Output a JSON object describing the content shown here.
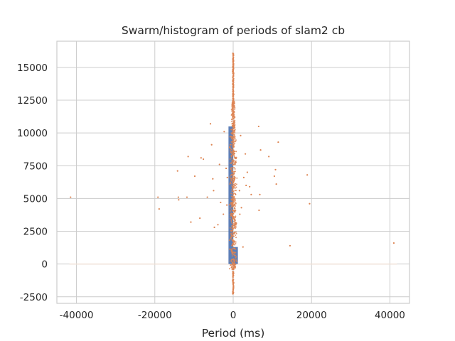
{
  "chart_data": {
    "type": "scatter",
    "title": "Swarm/histogram of periods of slam2 cb",
    "xlabel": "Period (ms)",
    "ylabel": "",
    "xlim": [
      -45000,
      45000
    ],
    "ylim": [
      -3000,
      17000
    ],
    "xticks": [
      -40000,
      -20000,
      0,
      20000,
      40000
    ],
    "yticks": [
      -2500,
      0,
      2500,
      5000,
      7500,
      10000,
      12500,
      15000
    ],
    "grid": true,
    "colors": {
      "histogram": "#4c72b0",
      "points": "#dd8452",
      "grid": "#cccccc",
      "axes": "#cccccc"
    },
    "histogram": {
      "bins": [
        {
          "x0": -1200,
          "x1": 0,
          "count": 10500
        },
        {
          "x0": 0,
          "x1": 1200,
          "count": 1300
        }
      ]
    },
    "outliers": [
      {
        "x": -41500,
        "y": 5100
      },
      {
        "x": -19200,
        "y": 5100
      },
      {
        "x": -18900,
        "y": 4200
      },
      {
        "x": -14200,
        "y": 7100
      },
      {
        "x": -14000,
        "y": 5100
      },
      {
        "x": -13900,
        "y": 4900
      },
      {
        "x": -11500,
        "y": 8200
      },
      {
        "x": -11800,
        "y": 5100
      },
      {
        "x": -10800,
        "y": 3200
      },
      {
        "x": -9800,
        "y": 6700
      },
      {
        "x": -8500,
        "y": 3500
      },
      {
        "x": -8200,
        "y": 8100
      },
      {
        "x": -7600,
        "y": 8000
      },
      {
        "x": -6600,
        "y": 5100
      },
      {
        "x": -5800,
        "y": 10700
      },
      {
        "x": -5500,
        "y": 9100
      },
      {
        "x": -5200,
        "y": 6500
      },
      {
        "x": -5000,
        "y": 5600
      },
      {
        "x": -4800,
        "y": 2800
      },
      {
        "x": -3900,
        "y": 3000
      },
      {
        "x": -3500,
        "y": 7600
      },
      {
        "x": -3200,
        "y": 4700
      },
      {
        "x": -2500,
        "y": 3800
      },
      {
        "x": -2300,
        "y": 10100
      },
      {
        "x": 3600,
        "y": 7000
      },
      {
        "x": 3300,
        "y": 6000
      },
      {
        "x": 4200,
        "y": 5900
      },
      {
        "x": 4600,
        "y": 5300
      },
      {
        "x": 2500,
        "y": 1300
      },
      {
        "x": 6500,
        "y": 10500
      },
      {
        "x": 7000,
        "y": 8700
      },
      {
        "x": 6800,
        "y": 5300
      },
      {
        "x": 6600,
        "y": 4100
      },
      {
        "x": 9100,
        "y": 8200
      },
      {
        "x": 10800,
        "y": 7200
      },
      {
        "x": 10500,
        "y": 6700
      },
      {
        "x": 11000,
        "y": 6100
      },
      {
        "x": 11500,
        "y": 9300
      },
      {
        "x": 14500,
        "y": 1400
      },
      {
        "x": 18900,
        "y": 6800
      },
      {
        "x": 19500,
        "y": 4600
      },
      {
        "x": 41000,
        "y": 1600
      },
      {
        "x": 3100,
        "y": 8400
      },
      {
        "x": 2700,
        "y": 6600
      },
      {
        "x": 1900,
        "y": 9800
      },
      {
        "x": 2100,
        "y": 4300
      },
      {
        "x": -1800,
        "y": 7300
      },
      {
        "x": -1500,
        "y": 6600
      },
      {
        "x": -1600,
        "y": 4500
      },
      {
        "x": 1600,
        "y": 5600
      },
      {
        "x": 1700,
        "y": 3800
      }
    ],
    "swarm_extent": {
      "x": [
        -1500,
        1500
      ],
      "y": [
        -2300,
        16100
      ]
    }
  }
}
